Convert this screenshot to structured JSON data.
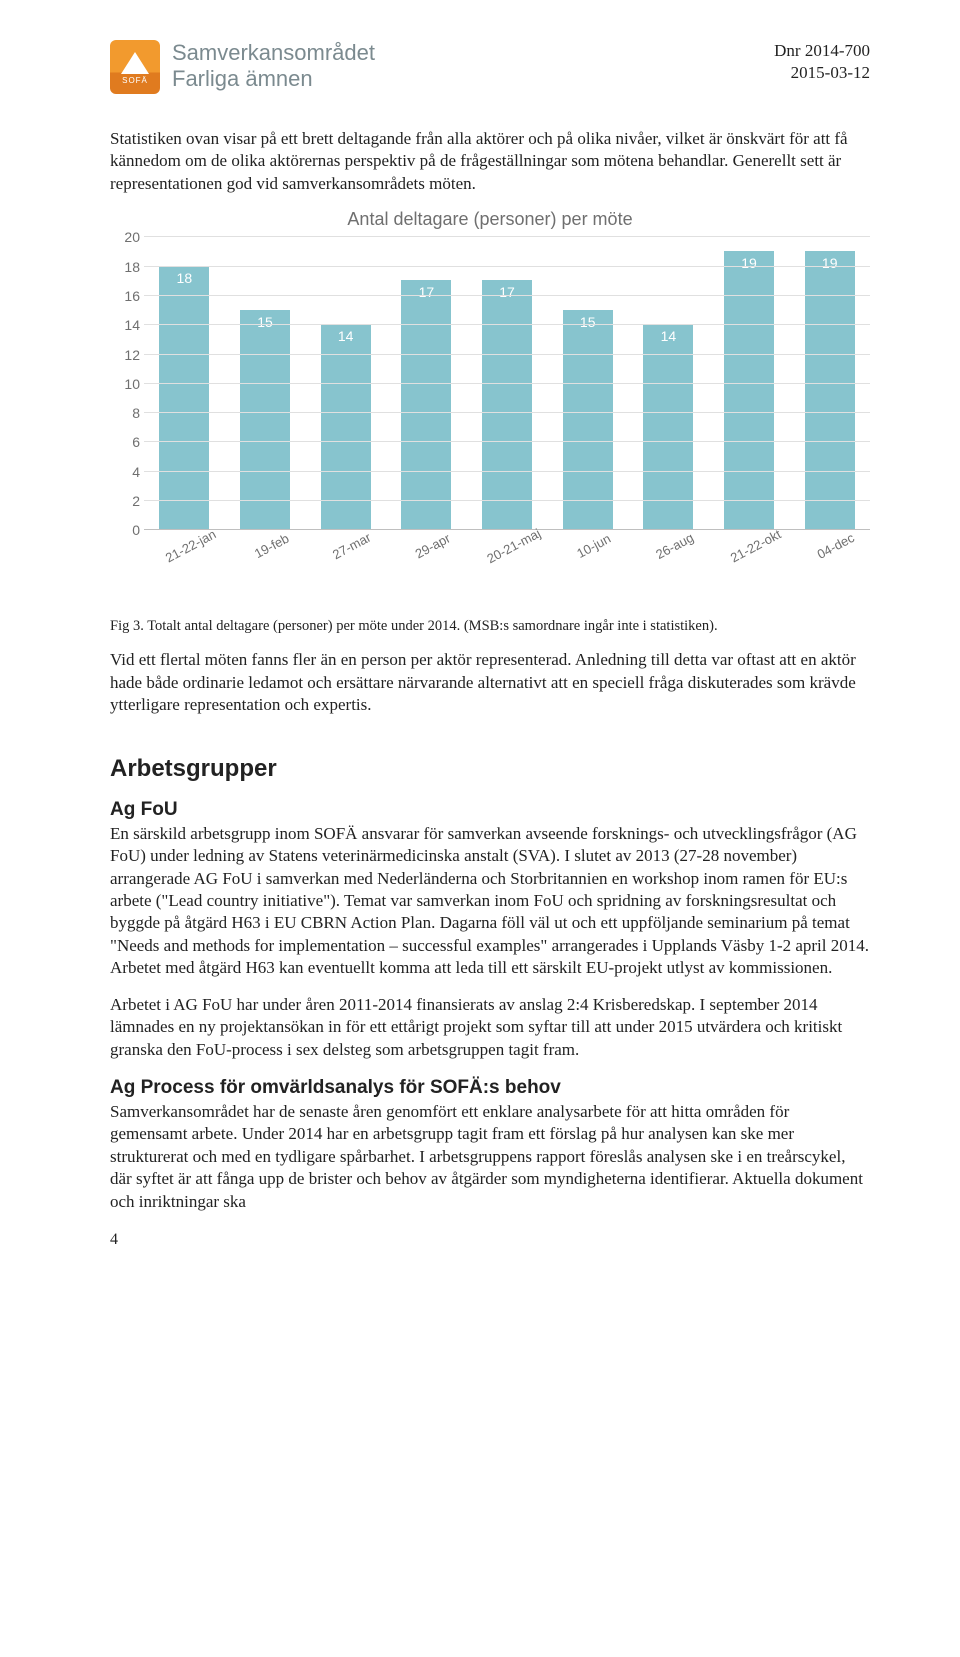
{
  "header": {
    "logo_caption": "SOFÄ",
    "title_line1": "Samverkansområdet",
    "title_line2": "Farliga ämnen",
    "dnr": "Dnr 2014-700",
    "date": "2015-03-12"
  },
  "intro_para": "Statistiken ovan visar på ett brett deltagande från alla aktörer och på olika nivåer, vilket är önskvärt för att få kännedom om de olika aktörernas perspektiv på de frågeställningar som mötena behandlar. Generellt sett är representationen god vid samverkansområdets möten.",
  "chart": {
    "type": "bar",
    "title": "Antal deltagare (personer) per möte",
    "categories": [
      "21-22-jan",
      "19-feb",
      "27-mar",
      "29-apr",
      "20-21-maj",
      "10-jun",
      "26-aug",
      "21-22-okt",
      "04-dec"
    ],
    "values": [
      18,
      15,
      14,
      17,
      17,
      15,
      14,
      19,
      19
    ],
    "bar_color": "#87c4ce",
    "grid_color": "#e0e0e0",
    "axis_color": "#bfbfbf",
    "label_color": "#6f6f6f",
    "value_label_color": "#ffffff",
    "background_color": "#ffffff",
    "ylim": [
      0,
      20
    ],
    "ytick_step": 2,
    "title_fontsize": 18,
    "label_fontsize": 13,
    "bar_width": 0.62
  },
  "fig_caption": "Fig 3. Totalt antal deltagare (personer) per möte under 2014. (MSB:s samordnare ingår inte i statistiken).",
  "mid_para": "Vid ett flertal möten fanns fler än en person per aktör representerad. Anledning till detta var oftast att en aktör hade både ordinarie ledamot och ersättare närvarande alternativt att en speciell fråga diskuterades som krävde ytterligare representation och expertis.",
  "section_heading": "Arbetsgrupper",
  "sub1_heading": "Ag FoU",
  "sub1_para1": "En särskild arbetsgrupp inom SOFÄ ansvarar för samverkan avseende forsknings- och utvecklingsfrågor (AG FoU) under ledning av Statens veterinärmedicinska anstalt (SVA). I slutet av 2013 (27-28 november) arrangerade AG FoU i samverkan med Nederländerna och Storbritannien en workshop inom ramen för EU:s arbete (\"Lead country initiative\"). Temat var samverkan inom FoU och spridning av forskningsresultat och byggde på åtgärd H63 i EU CBRN Action Plan. Dagarna föll väl ut och ett uppföljande seminarium på temat \"Needs and methods for implementation – successful examples\" arrangerades i Upplands Väsby 1-2 april 2014. Arbetet med åtgärd H63 kan eventuellt komma att leda till ett särskilt EU-projekt utlyst av kommissionen.",
  "sub1_para2": "Arbetet i AG FoU har under åren 2011-2014 finansierats av anslag 2:4 Krisberedskap. I september 2014 lämnades en ny projektansökan in för ett ettårigt projekt som syftar till att under 2015 utvärdera och kritiskt granska den FoU-process i sex delsteg som arbetsgruppen tagit fram.",
  "sub2_heading": "Ag Process för omvärldsanalys för SOFÄ:s behov",
  "sub2_para": "Samverkansområdet har de senaste åren genomfört ett enklare analysarbete för att hitta områden för gemensamt arbete. Under 2014 har en arbetsgrupp tagit fram ett förslag på hur analysen kan ske mer strukturerat och med en tydligare spårbarhet. I arbetsgruppens rapport föreslås analysen ske i en treårscykel, där syftet är att fånga upp de brister och behov av åtgärder som myndigheterna identifierar. Aktuella dokument och inriktningar ska",
  "page_number": "4"
}
